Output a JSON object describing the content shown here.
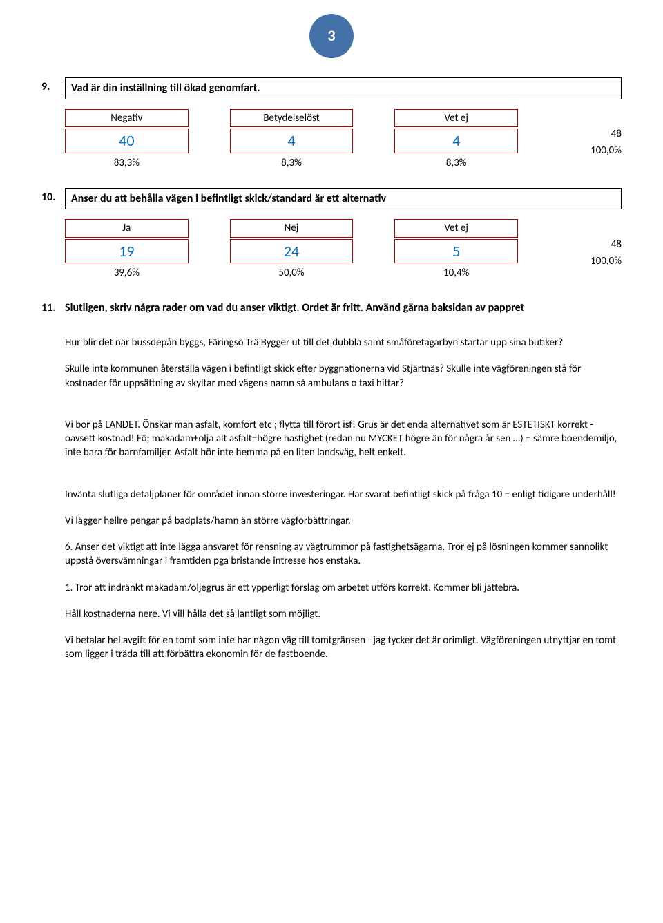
{
  "page_number": "3",
  "q9": {
    "num": "9.",
    "text": "Vad är din inställning till ökad genomfart.",
    "headers": [
      "Negativ",
      "Betydelselöst",
      "Vet ej"
    ],
    "values": [
      "40",
      "4",
      "4"
    ],
    "total_val": "48",
    "percents": [
      "83,3%",
      "8,3%",
      "8,3%"
    ],
    "total_pct": "100,0%"
  },
  "q10": {
    "num": "10.",
    "text": "Anser du att behålla vägen i befintligt skick/standard är ett alternativ",
    "headers": [
      "Ja",
      "Nej",
      "Vet ej"
    ],
    "values": [
      "19",
      "24",
      "5"
    ],
    "total_val": "48",
    "percents": [
      "39,6%",
      "50,0%",
      "10,4%"
    ],
    "total_pct": "100,0%"
  },
  "q11": {
    "num": "11.",
    "text": "Slutligen, skriv några rader om vad du anser viktigt. Ordet är fritt. Använd gärna baksidan av pappret"
  },
  "comments": [
    "Hur blir det när bussdepån byggs, Färingsö Trä Bygger ut till det dubbla samt småföretagarbyn startar upp sina butiker?",
    "Skulle inte kommunen återställa vägen i befintligt skick efter byggnationerna vid Stjärtnäs? Skulle inte vägföreningen stå för kostnader för uppsättning av skyltar med vägens namn så ambulans o taxi hittar?",
    "Vi bor på LANDET. Önskar man asfalt, komfort etc ; flytta till förort isf! Grus är det enda alternativet som är ESTETISKT korrekt - oavsett kostnad! Fö; makadam+olja alt asfalt=högre hastighet (redan nu MYCKET högre än för några år sen …) = sämre boendemiljö, inte bara för barnfamiljer. Asfalt hör inte hemma på en liten landsväg, helt enkelt.",
    "Invänta slutliga detaljplaner för området innan större investeringar. Har svarat befintligt skick på fråga 10 = enligt tidigare underhåll!",
    "Vi lägger hellre pengar på badplats/hamn än större vägförbättringar.",
    "6. Anser det viktigt att inte lägga ansvaret för rensning av vägtrummor på fastighetsägarna. Tror ej på lösningen kommer sannolikt uppstå översvämningar i framtiden pga bristande intresse hos enstaka.",
    "1. Tror att indränkt makadam/oljegrus är ett ypperligt förslag om arbetet utförs korrekt. Kommer bli jättebra.",
    "Håll kostnaderna nere. Vi vill hålla det så lantligt som möjligt.",
    "Vi betalar hel avgift för en tomt som inte har någon väg till tomtgränsen - jag tycker det är orimligt. Vägföreningen utnyttjar en tomt som ligger i träda till att förbättra ekonomin för de fastboende."
  ]
}
